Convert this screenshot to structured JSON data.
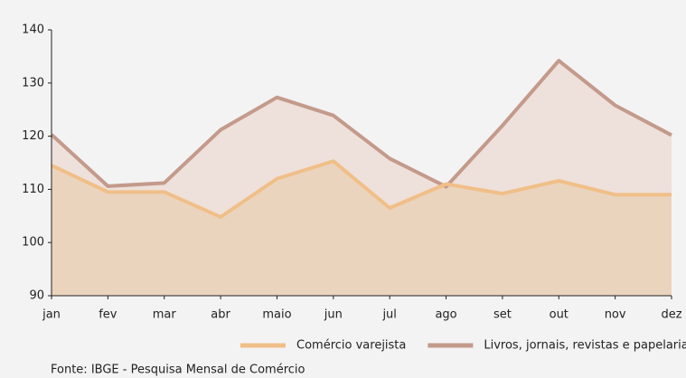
{
  "chart_data": {
    "type": "area",
    "categories": [
      "jan",
      "fev",
      "mar",
      "abr",
      "maio",
      "jun",
      "jul",
      "ago",
      "set",
      "out",
      "nov",
      "dez"
    ],
    "series": [
      {
        "name": "Comércio varejista",
        "color": "#f0bf88",
        "fill": "#ebd4be",
        "values": [
          114.5,
          109.5,
          109.5,
          104.8,
          112,
          115.3,
          106.5,
          111,
          109.2,
          111.6,
          109,
          109
        ]
      },
      {
        "name": "Livros, jornais, revistas e papelaria",
        "color": "#c39a8b",
        "fill": "#eee0da",
        "values": [
          120.3,
          110.6,
          111.2,
          121.2,
          127.3,
          123.9,
          115.8,
          110.5,
          122,
          134.2,
          125.8,
          120.2
        ]
      }
    ],
    "ylim": [
      90,
      140
    ],
    "yticks": [
      90,
      100,
      110,
      120,
      130,
      140
    ],
    "legend": "bottom-right",
    "source": "Fonte: IBGE - Pesquisa Mensal de Comércio"
  }
}
